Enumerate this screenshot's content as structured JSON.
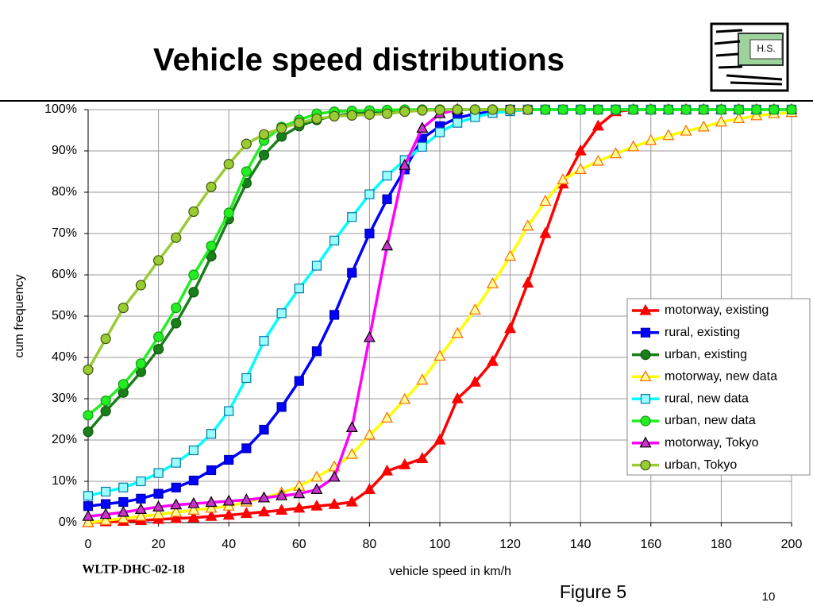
{
  "slide": {
    "title": "Vehicle speed distributions",
    "footer_left": "WLTP-DHC-02-18",
    "figure_label": "Figure 5",
    "page_number": "10",
    "logo_text": "H.S."
  },
  "chart_data": {
    "type": "line",
    "xlabel": "vehicle speed in km/h",
    "ylabel": "cum frequency",
    "x": [
      0,
      5,
      10,
      15,
      20,
      25,
      30,
      35,
      40,
      45,
      50,
      55,
      60,
      65,
      70,
      75,
      80,
      85,
      90,
      95,
      100,
      105,
      110,
      115,
      120,
      125,
      130,
      135,
      140,
      145,
      150,
      155,
      160,
      165,
      170,
      175,
      180,
      185,
      190,
      195,
      200
    ],
    "xlim": [
      0,
      200
    ],
    "xticks": [
      0,
      20,
      40,
      60,
      80,
      100,
      120,
      140,
      160,
      180,
      200
    ],
    "ylim": [
      0,
      100
    ],
    "yticks": [
      {
        "value": 0,
        "label": "0%"
      },
      {
        "value": 10,
        "label": "10%"
      },
      {
        "value": 20,
        "label": "20%"
      },
      {
        "value": 30,
        "label": "30%"
      },
      {
        "value": 40,
        "label": "40%"
      },
      {
        "value": 50,
        "label": "50%"
      },
      {
        "value": 60,
        "label": "60%"
      },
      {
        "value": 70,
        "label": "70%"
      },
      {
        "value": 80,
        "label": "80%"
      },
      {
        "value": 90,
        "label": "90%"
      },
      {
        "value": 100,
        "label": "100%"
      }
    ],
    "grid": true,
    "legend_position": "right",
    "series": [
      {
        "name": "motorway, existing",
        "color": "#ff0000",
        "marker": "triangle",
        "marker_fill": "#ff0000",
        "marker_stroke": "#ff0000",
        "values": [
          0,
          0.2,
          0.3,
          0.5,
          0.8,
          1,
          1.2,
          1.5,
          1.8,
          2.2,
          2.6,
          3,
          3.5,
          4,
          4.4,
          5,
          8,
          12.5,
          14,
          15.5,
          20,
          30,
          34,
          39,
          47,
          58,
          70,
          82,
          90,
          96,
          99.5,
          100,
          100,
          100,
          100,
          100,
          100,
          100,
          100,
          100,
          100
        ]
      },
      {
        "name": "rural, existing",
        "color": "#0000ff",
        "marker": "square",
        "marker_fill": "#0000ff",
        "marker_stroke": "#0000aa",
        "values": [
          4,
          4.5,
          5,
          5.8,
          7,
          8.5,
          10.2,
          12.7,
          15.2,
          18,
          22.5,
          28,
          34.3,
          41.5,
          50.3,
          60.5,
          70,
          78.3,
          85.5,
          93,
          96,
          98,
          99,
          99.5,
          100,
          100,
          100,
          100,
          100,
          100,
          100,
          100,
          100,
          100,
          100,
          100,
          100,
          100,
          100,
          100,
          100
        ]
      },
      {
        "name": "urban, existing",
        "color": "#1a7f1a",
        "marker": "circle",
        "marker_fill": "#1a7f1a",
        "marker_stroke": "#0d5a0d",
        "values": [
          22,
          27,
          31.5,
          36.5,
          42,
          48.3,
          55.8,
          64.5,
          73.5,
          82.2,
          89,
          93.5,
          96,
          97.5,
          98.5,
          99,
          99.3,
          99.5,
          99.7,
          100,
          100,
          100,
          100,
          100,
          100,
          100,
          100,
          100,
          100,
          100,
          100,
          100,
          100,
          100,
          100,
          100,
          100,
          100,
          100,
          100,
          100
        ]
      },
      {
        "name": "motorway, new data",
        "color": "#ffff00",
        "marker": "triangle",
        "marker_fill": "#ffff99",
        "marker_stroke": "#ff6600",
        "values": [
          0,
          0.5,
          1,
          1.5,
          2,
          2.5,
          3,
          3.5,
          4,
          5,
          6,
          7.2,
          8.8,
          11,
          13.5,
          16.5,
          21.2,
          25.3,
          29.8,
          34.5,
          40.3,
          45.8,
          51.5,
          57.8,
          64.5,
          71.8,
          77.8,
          83,
          85.5,
          87.5,
          89.3,
          91,
          92.5,
          93.7,
          94.8,
          95.8,
          97,
          97.8,
          98.5,
          99,
          99.3
        ]
      },
      {
        "name": "rural, new data",
        "color": "#00ffff",
        "marker": "square",
        "marker_fill": "#99ffff",
        "marker_stroke": "#0077aa",
        "values": [
          6.5,
          7.5,
          8.5,
          10,
          12,
          14.5,
          17.5,
          21.5,
          27,
          35,
          44,
          50.7,
          56.7,
          62.2,
          68.3,
          74,
          79.5,
          84,
          87.8,
          91,
          94.5,
          96.8,
          98.2,
          99.2,
          99.6,
          100,
          100,
          100,
          100,
          100,
          100,
          100,
          100,
          100,
          100,
          100,
          100,
          100,
          100,
          100,
          100
        ]
      },
      {
        "name": "urban, new data",
        "color": "#22ee22",
        "marker": "circle",
        "marker_fill": "#22ee22",
        "marker_stroke": "#119911",
        "values": [
          26,
          29.5,
          33.5,
          38.5,
          45,
          52,
          60,
          67,
          75,
          85,
          92.5,
          95.8,
          97.5,
          99,
          99.5,
          99.7,
          99.8,
          99.9,
          100,
          100,
          100,
          100,
          100,
          100,
          100,
          100,
          100,
          100,
          100,
          100,
          100,
          100,
          100,
          100,
          100,
          100,
          100,
          100,
          100,
          100,
          100
        ]
      },
      {
        "name": "motorway, Tokyo",
        "color": "#ff00ff",
        "marker": "triangle",
        "marker_fill": "#cc33cc",
        "marker_stroke": "#000000",
        "values": [
          1.5,
          2,
          2.5,
          3.2,
          3.8,
          4.3,
          4.6,
          4.9,
          5.2,
          5.5,
          6,
          6.5,
          7,
          8,
          11,
          23,
          44.8,
          67,
          86.5,
          95.5,
          99,
          100,
          null,
          null,
          null,
          null,
          null,
          null,
          null,
          null,
          null,
          null,
          null,
          null,
          null,
          null,
          null,
          null,
          null,
          null,
          null
        ]
      },
      {
        "name": "urban, Tokyo",
        "color": "#99cc33",
        "marker": "circle",
        "marker_fill": "#99cc33",
        "marker_stroke": "#445511",
        "values": [
          37,
          44.5,
          52,
          57.5,
          63.5,
          69,
          75.3,
          81.3,
          86.8,
          91.7,
          94,
          95.5,
          96.8,
          97.8,
          98.4,
          98.6,
          98.8,
          99,
          99.5,
          99.8,
          99.9,
          100,
          100,
          100,
          100,
          100,
          null,
          null,
          null,
          null,
          null,
          null,
          null,
          null,
          null,
          null,
          null,
          null,
          null,
          null,
          null
        ]
      }
    ]
  }
}
